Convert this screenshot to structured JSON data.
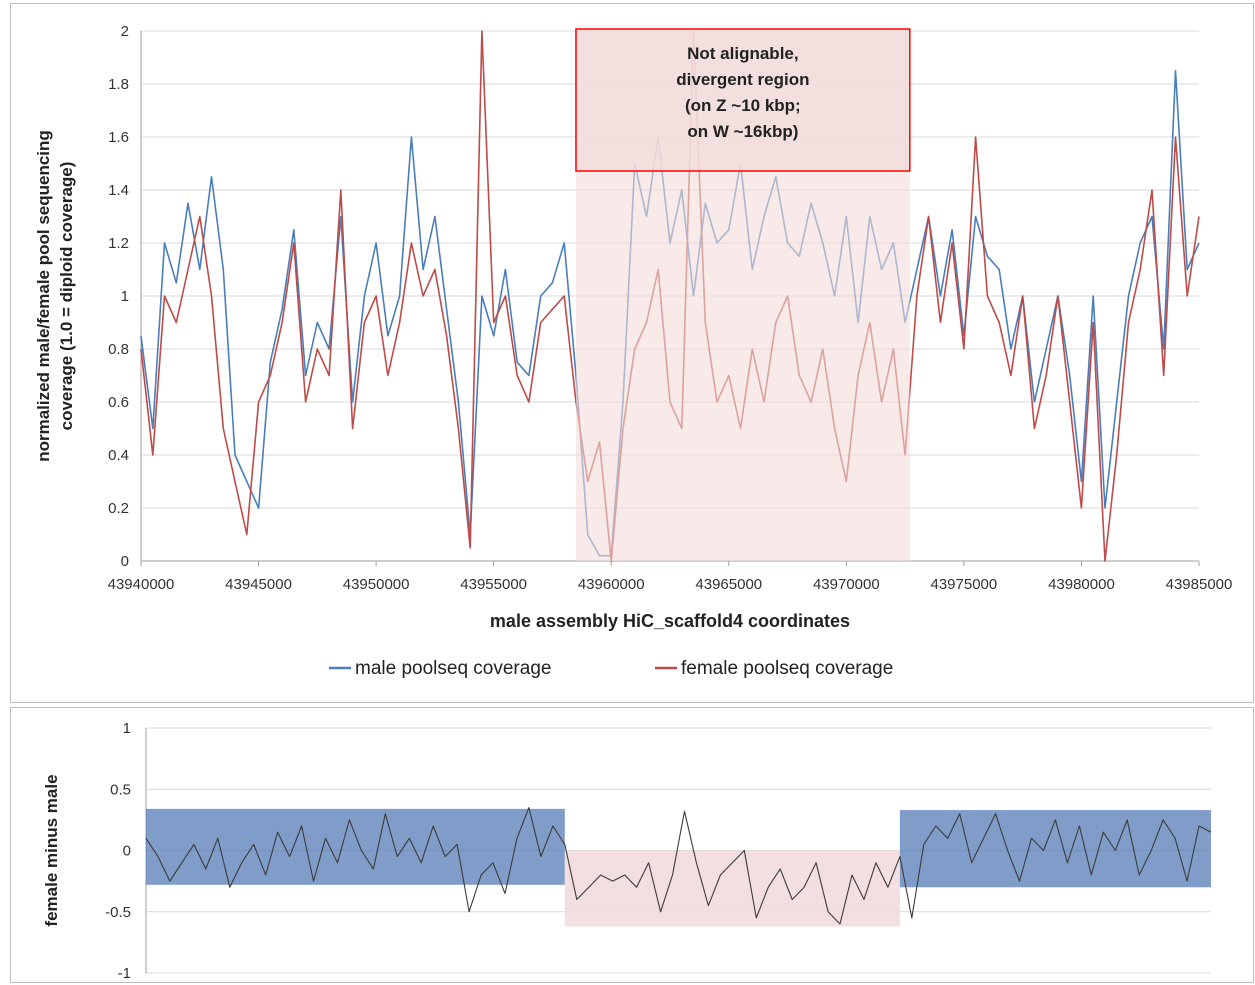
{
  "chart_data": [
    {
      "type": "line",
      "xlabel": "male assembly HiC_scaffold4 coordinates",
      "ylabel_lines": [
        "normalized male/female pool sequencing",
        "coverage (1.0 = diploid coverage)"
      ],
      "xlim": [
        43940000,
        43985000
      ],
      "ylim": [
        0,
        2
      ],
      "x_ticks": [
        "43940000",
        "43945000",
        "43950000",
        "43955000",
        "43960000",
        "43965000",
        "43970000",
        "43975000",
        "43980000",
        "43985000"
      ],
      "y_ticks": [
        "0",
        "0.2",
        "0.4",
        "0.6",
        "0.8",
        "1",
        "1.2",
        "1.4",
        "1.6",
        "1.8",
        "2"
      ],
      "grid": "horizontal",
      "legend_position": "bottom",
      "colors": {
        "male": "#4a7ebb",
        "female": "#be4b48",
        "region_fill": "#f2dcdb",
        "region_border": "#ff0000"
      },
      "annotation_lines": [
        "Not alignable,",
        "divergent region",
        "(on Z ~10 kbp;",
        "on W ~16kbp)"
      ],
      "shaded_region_x": [
        43958500,
        43972700
      ],
      "series": [
        {
          "name": "male poolseq coverage",
          "x": [
            43940000,
            43940500,
            43941000,
            43941500,
            43942000,
            43942500,
            43943000,
            43943500,
            43944000,
            43944500,
            43945000,
            43945500,
            43946000,
            43946500,
            43947000,
            43947500,
            43948000,
            43948500,
            43949000,
            43949500,
            43950000,
            43950500,
            43951000,
            43951500,
            43952000,
            43952500,
            43953000,
            43953500,
            43954000,
            43954500,
            43955000,
            43955500,
            43956000,
            43956500,
            43957000,
            43957500,
            43958000,
            43958500,
            43959000,
            43959500,
            43960000,
            43960500,
            43961000,
            43961500,
            43962000,
            43962500,
            43963000,
            43963500,
            43964000,
            43964500,
            43965000,
            43965500,
            43966000,
            43966500,
            43967000,
            43967500,
            43968000,
            43968500,
            43969000,
            43969500,
            43970000,
            43970500,
            43971000,
            43971500,
            43972000,
            43972500,
            43973000,
            43973500,
            43974000,
            43974500,
            43975000,
            43975500,
            43976000,
            43976500,
            43977000,
            43977500,
            43978000,
            43978500,
            43979000,
            43979500,
            43980000,
            43980500,
            43981000,
            43981500,
            43982000,
            43982500,
            43983000,
            43983500,
            43984000,
            43984500,
            43985000
          ],
          "values": [
            0.85,
            0.5,
            1.2,
            1.05,
            1.35,
            1.1,
            1.45,
            1.1,
            0.4,
            0.3,
            0.2,
            0.75,
            0.95,
            1.25,
            0.7,
            0.9,
            0.8,
            1.3,
            0.6,
            1.0,
            1.2,
            0.85,
            1.0,
            1.6,
            1.1,
            1.3,
            0.95,
            0.6,
            0.1,
            1.0,
            0.85,
            1.1,
            0.75,
            0.7,
            1.0,
            1.05,
            1.2,
            0.7,
            0.1,
            0.02,
            0.02,
            0.6,
            1.5,
            1.3,
            1.6,
            1.2,
            1.4,
            1.0,
            1.35,
            1.2,
            1.25,
            1.5,
            1.1,
            1.3,
            1.45,
            1.2,
            1.15,
            1.35,
            1.2,
            1.0,
            1.3,
            0.9,
            1.3,
            1.1,
            1.2,
            0.9,
            1.1,
            1.3,
            1.0,
            1.25,
            0.85,
            1.3,
            1.15,
            1.1,
            0.8,
            1.0,
            0.6,
            0.8,
            1.0,
            0.7,
            0.3,
            1.0,
            0.2,
            0.6,
            1.0,
            1.2,
            1.3,
            0.8,
            1.85,
            1.1,
            1.2
          ]
        },
        {
          "name": "female poolseq coverage",
          "x": [
            43940000,
            43940500,
            43941000,
            43941500,
            43942000,
            43942500,
            43943000,
            43943500,
            43944000,
            43944500,
            43945000,
            43945500,
            43946000,
            43946500,
            43947000,
            43947500,
            43948000,
            43948500,
            43949000,
            43949500,
            43950000,
            43950500,
            43951000,
            43951500,
            43952000,
            43952500,
            43953000,
            43953500,
            43954000,
            43954500,
            43955000,
            43955500,
            43956000,
            43956500,
            43957000,
            43957500,
            43958000,
            43958500,
            43959000,
            43959500,
            43960000,
            43960500,
            43961000,
            43961500,
            43962000,
            43962500,
            43963000,
            43963500,
            43964000,
            43964500,
            43965000,
            43965500,
            43966000,
            43966500,
            43967000,
            43967500,
            43968000,
            43968500,
            43969000,
            43969500,
            43970000,
            43970500,
            43971000,
            43971500,
            43972000,
            43972500,
            43973000,
            43973500,
            43974000,
            43974500,
            43975000,
            43975500,
            43976000,
            43976500,
            43977000,
            43977500,
            43978000,
            43978500,
            43979000,
            43979500,
            43980000,
            43980500,
            43981000,
            43981500,
            43982000,
            43982500,
            43983000,
            43983500,
            43984000,
            43984500,
            43985000
          ],
          "values": [
            0.8,
            0.4,
            1.0,
            0.9,
            1.1,
            1.3,
            1.0,
            0.5,
            0.3,
            0.1,
            0.6,
            0.7,
            0.9,
            1.2,
            0.6,
            0.8,
            0.7,
            1.4,
            0.5,
            0.9,
            1.0,
            0.7,
            0.9,
            1.2,
            1.0,
            1.1,
            0.85,
            0.5,
            0.05,
            2.0,
            0.9,
            1.0,
            0.7,
            0.6,
            0.9,
            0.95,
            1.0,
            0.6,
            0.3,
            0.45,
            0.0,
            0.5,
            0.8,
            0.9,
            1.1,
            0.6,
            0.5,
            2.0,
            0.9,
            0.6,
            0.7,
            0.5,
            0.8,
            0.6,
            0.9,
            1.0,
            0.7,
            0.6,
            0.8,
            0.5,
            0.3,
            0.7,
            0.9,
            0.6,
            0.8,
            0.4,
            1.0,
            1.3,
            0.9,
            1.2,
            0.8,
            1.6,
            1.0,
            0.9,
            0.7,
            1.0,
            0.5,
            0.7,
            1.0,
            0.6,
            0.2,
            0.9,
            0.0,
            0.4,
            0.9,
            1.1,
            1.4,
            0.7,
            1.6,
            1.0,
            1.3
          ]
        }
      ]
    },
    {
      "type": "line",
      "ylabel": "female minus male",
      "ylim": [
        -1,
        1
      ],
      "y_ticks": [
        "1",
        "0.5",
        "0",
        "-0.5",
        "-1"
      ],
      "grid": "horizontal",
      "colors": {
        "line": "#3b3b3b",
        "low_band": "#f2dcdb",
        "high_band": "#4f77b4"
      },
      "bands": [
        {
          "from_index": 0,
          "to_index": 35,
          "y": [
            -0.28,
            0.34
          ],
          "kind": "high_band"
        },
        {
          "from_index": 35,
          "to_index": 63,
          "y": [
            -0.62,
            0.0
          ],
          "kind": "low_band"
        },
        {
          "from_index": 63,
          "to_index": 89,
          "y": [
            -0.3,
            0.33
          ],
          "kind": "high_band"
        }
      ],
      "series": [
        {
          "values": [
            0.1,
            -0.05,
            -0.25,
            -0.1,
            0.05,
            -0.15,
            0.1,
            -0.3,
            -0.1,
            0.05,
            -0.2,
            0.15,
            -0.05,
            0.2,
            -0.25,
            0.1,
            -0.1,
            0.25,
            0.0,
            -0.15,
            0.3,
            -0.05,
            0.1,
            -0.1,
            0.2,
            -0.05,
            0.05,
            -0.5,
            -0.2,
            -0.1,
            -0.35,
            0.1,
            0.35,
            -0.05,
            0.2,
            0.05,
            -0.4,
            -0.3,
            -0.2,
            -0.25,
            -0.2,
            -0.3,
            -0.1,
            -0.5,
            -0.2,
            0.32,
            -0.1,
            -0.45,
            -0.2,
            -0.1,
            0.0,
            -0.55,
            -0.3,
            -0.15,
            -0.4,
            -0.3,
            -0.1,
            -0.5,
            -0.6,
            -0.2,
            -0.4,
            -0.1,
            -0.3,
            -0.05,
            -0.55,
            0.05,
            0.2,
            0.1,
            0.3,
            -0.1,
            0.1,
            0.3,
            0.0,
            -0.25,
            0.1,
            0.0,
            0.25,
            -0.1,
            0.2,
            -0.2,
            0.15,
            0.0,
            0.25,
            -0.2,
            0.0,
            0.25,
            0.1,
            -0.25,
            0.2,
            0.15
          ]
        }
      ]
    }
  ]
}
